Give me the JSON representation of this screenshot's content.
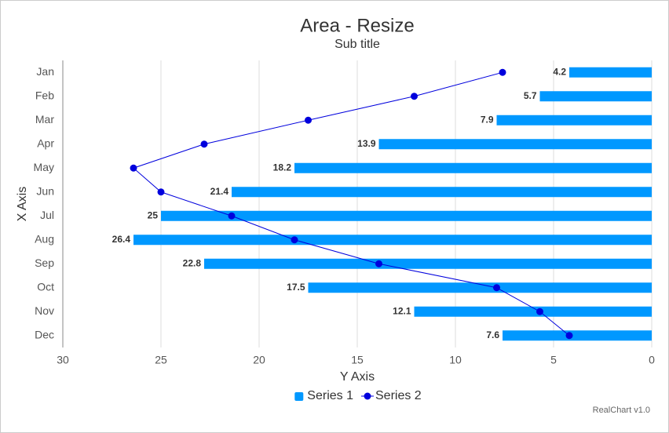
{
  "chart_data": {
    "type": "bar-line",
    "title": "Area - Resize",
    "subtitle": "Sub title",
    "x_label": "X Axis",
    "y_label": "Y Axis",
    "credit": "RealChart v1.0",
    "categories": [
      "Jan",
      "Feb",
      "Mar",
      "Apr",
      "May",
      "Jun",
      "Jul",
      "Aug",
      "Sep",
      "Oct",
      "Nov",
      "Dec"
    ],
    "series": [
      {
        "name": "Series 1",
        "type": "bar",
        "color": "#0098ff",
        "values": [
          4.2,
          5.7,
          7.9,
          13.9,
          18.2,
          21.4,
          25,
          26.4,
          22.8,
          17.5,
          12.1,
          7.6
        ]
      },
      {
        "name": "Series 2",
        "type": "line",
        "color": "#0000dd",
        "values": [
          7.6,
          12.1,
          17.5,
          22.8,
          26.4,
          25,
          21.4,
          18.2,
          13.9,
          7.9,
          5.7,
          4.2
        ]
      }
    ],
    "ylim": [
      30,
      0
    ],
    "yticks": [
      30,
      25,
      20,
      15,
      10,
      5,
      0
    ],
    "grid": true,
    "legend": "bottom"
  }
}
